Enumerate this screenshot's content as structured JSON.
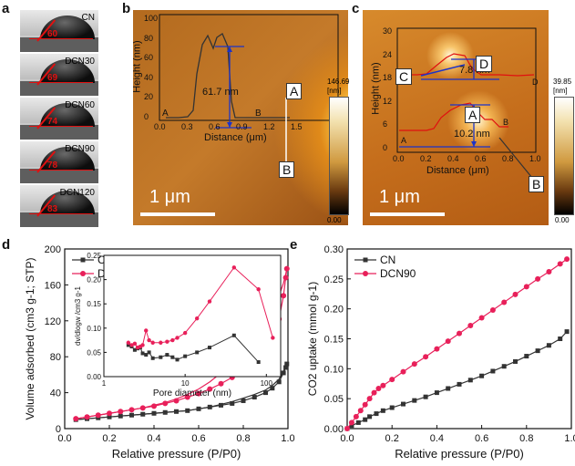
{
  "panels": {
    "a": {
      "label": "a",
      "samples": [
        {
          "name": "CN",
          "angle": "60"
        },
        {
          "name": "DCN30",
          "angle": "69"
        },
        {
          "name": "DCN60",
          "angle": "74"
        },
        {
          "name": "DCN90",
          "angle": "78"
        },
        {
          "name": "DCN120",
          "angle": "83"
        }
      ]
    },
    "b": {
      "label": "b",
      "scalebar": "1 μm",
      "colorbar_max": "146.69",
      "colorbar_unit": "[nm]",
      "colorbar_min": "0.00",
      "marker_a": "A",
      "marker_b": "B",
      "inset": {
        "ylabel": "Height (nm)",
        "xlabel": "Distance (μm)",
        "y_ticks": [
          "0",
          "20",
          "40",
          "60",
          "80",
          "100"
        ],
        "x_ticks": [
          "0.0",
          "0.3",
          "0.6",
          "0.9",
          "1.2",
          "1.5"
        ],
        "height_annotation": "61.7 nm",
        "point_a": "A",
        "point_b": "B"
      }
    },
    "c": {
      "label": "c",
      "scalebar": "1 μm",
      "colorbar_max": "39.85",
      "colorbar_unit": "[nm]",
      "colorbar_min": "0.00",
      "inset": {
        "ylabel": "Height (nm)",
        "xlabel": "Distance (μm)",
        "y_ticks": [
          "0",
          "6",
          "12",
          "18",
          "24",
          "30"
        ],
        "x_ticks": [
          "0.0",
          "0.2",
          "0.4",
          "0.6",
          "0.8",
          "1.0"
        ],
        "upper_annotation": "7.8 nm",
        "lower_annotation": "10.2 nm",
        "point_c_left": "C",
        "point_d_right": "D",
        "point_a_left": "A",
        "point_b_right": "B",
        "marker_c": "C",
        "marker_d": "D",
        "marker_a": "A",
        "marker_b": "B"
      }
    },
    "d": {
      "label": "d"
    },
    "e": {
      "label": "e"
    }
  },
  "chart_data": [
    {
      "id": "d",
      "type": "line",
      "xlabel": "Relative pressure (P/P0)",
      "ylabel": "Volume adsorbed (cm3 g-1; STP)",
      "xlim": [
        0.0,
        1.0
      ],
      "ylim": [
        0,
        200
      ],
      "x_ticks": [
        "0.0",
        "0.2",
        "0.4",
        "0.6",
        "0.8",
        "1.0"
      ],
      "y_ticks": [
        "0",
        "40",
        "80",
        "120",
        "160",
        "200"
      ],
      "legend": "top-left",
      "series": [
        {
          "name": "CN",
          "color": "#333333",
          "x": [
            0.05,
            0.1,
            0.15,
            0.2,
            0.25,
            0.3,
            0.35,
            0.4,
            0.45,
            0.5,
            0.55,
            0.6,
            0.65,
            0.7,
            0.75,
            0.8,
            0.85,
            0.9,
            0.93,
            0.96,
            0.98,
            0.99,
            0.995
          ],
          "y": [
            10,
            11,
            12,
            13,
            14,
            15,
            16,
            17,
            18,
            19,
            20,
            22,
            24,
            26,
            28,
            31,
            35,
            40,
            45,
            52,
            62,
            68,
            72
          ],
          "desorption_y": [
            10,
            11,
            12,
            13,
            14,
            15,
            16,
            17,
            18,
            19,
            20,
            22,
            24,
            27,
            30,
            34,
            38,
            43,
            48,
            55,
            64,
            69,
            72
          ]
        },
        {
          "name": "DCN90",
          "color": "#e8205a",
          "x": [
            0.05,
            0.1,
            0.15,
            0.2,
            0.25,
            0.3,
            0.35,
            0.4,
            0.45,
            0.5,
            0.55,
            0.6,
            0.65,
            0.7,
            0.75,
            0.8,
            0.85,
            0.9,
            0.93,
            0.96,
            0.98,
            0.99,
            0.995
          ],
          "y": [
            11,
            13,
            15,
            17,
            19,
            21,
            23,
            25,
            28,
            31,
            35,
            39,
            44,
            50,
            57,
            66,
            77,
            92,
            104,
            122,
            148,
            168,
            178
          ],
          "desorption_y": [
            11,
            13,
            15,
            17,
            19,
            21,
            23,
            26,
            29,
            33,
            38,
            44,
            52,
            62,
            74,
            88,
            104,
            122,
            134,
            148,
            162,
            172,
            178
          ]
        }
      ],
      "inset": {
        "type": "line",
        "xlabel": "Pore diameter (nm)",
        "ylabel": "dv/dlogw /cm3 g-1",
        "xscale": "log",
        "xlim": [
          1,
          150
        ],
        "ylim": [
          0,
          0.25
        ],
        "x_ticks": [
          "1",
          "10",
          "100"
        ],
        "y_ticks": [
          "0.00",
          "0.05",
          "0.10",
          "0.15",
          "0.20",
          "0.25"
        ],
        "series": [
          {
            "name": "CN",
            "color": "#333333",
            "x": [
              2.0,
              2.2,
              2.4,
              2.6,
              2.8,
              3.0,
              3.3,
              3.6,
              4.0,
              5.0,
              6.0,
              7.0,
              8.0,
              10,
              14,
              20,
              40,
              80
            ],
            "y": [
              0.065,
              0.062,
              0.055,
              0.058,
              0.06,
              0.048,
              0.045,
              0.05,
              0.038,
              0.04,
              0.045,
              0.04,
              0.035,
              0.042,
              0.05,
              0.06,
              0.085,
              0.03
            ]
          },
          {
            "name": "DCN90",
            "color": "#e8205a",
            "x": [
              2.0,
              2.2,
              2.4,
              2.6,
              2.8,
              3.0,
              3.3,
              3.6,
              4.0,
              5.0,
              6.0,
              7.0,
              8.0,
              10,
              14,
              20,
              40,
              80,
              120
            ],
            "y": [
              0.07,
              0.065,
              0.068,
              0.06,
              0.062,
              0.065,
              0.095,
              0.075,
              0.07,
              0.07,
              0.072,
              0.075,
              0.08,
              0.09,
              0.12,
              0.155,
              0.225,
              0.18,
              0.08
            ]
          }
        ]
      }
    },
    {
      "id": "e",
      "type": "line",
      "xlabel": "Relative pressure (P/P0)",
      "ylabel": "CO2 uptake (mmol g-1)",
      "xlim": [
        0.0,
        1.0
      ],
      "ylim": [
        0.0,
        0.3
      ],
      "x_ticks": [
        "0.0",
        "0.2",
        "0.4",
        "0.6",
        "0.8",
        "1.0"
      ],
      "y_ticks": [
        "0.00",
        "0.05",
        "0.10",
        "0.15",
        "0.20",
        "0.25",
        "0.30"
      ],
      "legend": "top-left",
      "series": [
        {
          "name": "CN",
          "color": "#333333",
          "x": [
            0.0,
            0.02,
            0.05,
            0.08,
            0.1,
            0.13,
            0.16,
            0.2,
            0.25,
            0.3,
            0.35,
            0.4,
            0.45,
            0.5,
            0.55,
            0.6,
            0.65,
            0.7,
            0.75,
            0.8,
            0.85,
            0.9,
            0.95,
            0.98
          ],
          "y": [
            0.0,
            0.005,
            0.01,
            0.015,
            0.02,
            0.025,
            0.03,
            0.035,
            0.041,
            0.047,
            0.053,
            0.06,
            0.067,
            0.074,
            0.081,
            0.088,
            0.096,
            0.104,
            0.112,
            0.121,
            0.13,
            0.139,
            0.15,
            0.162
          ]
        },
        {
          "name": "DCN90",
          "color": "#e8205a",
          "x": [
            0.0,
            0.02,
            0.04,
            0.06,
            0.08,
            0.1,
            0.12,
            0.14,
            0.16,
            0.2,
            0.25,
            0.3,
            0.35,
            0.4,
            0.45,
            0.5,
            0.55,
            0.6,
            0.65,
            0.7,
            0.75,
            0.8,
            0.85,
            0.9,
            0.95,
            0.98
          ],
          "y": [
            0.0,
            0.01,
            0.02,
            0.03,
            0.04,
            0.05,
            0.06,
            0.067,
            0.072,
            0.082,
            0.095,
            0.108,
            0.12,
            0.133,
            0.146,
            0.159,
            0.172,
            0.185,
            0.198,
            0.211,
            0.224,
            0.237,
            0.25,
            0.262,
            0.275,
            0.283
          ]
        }
      ]
    }
  ]
}
